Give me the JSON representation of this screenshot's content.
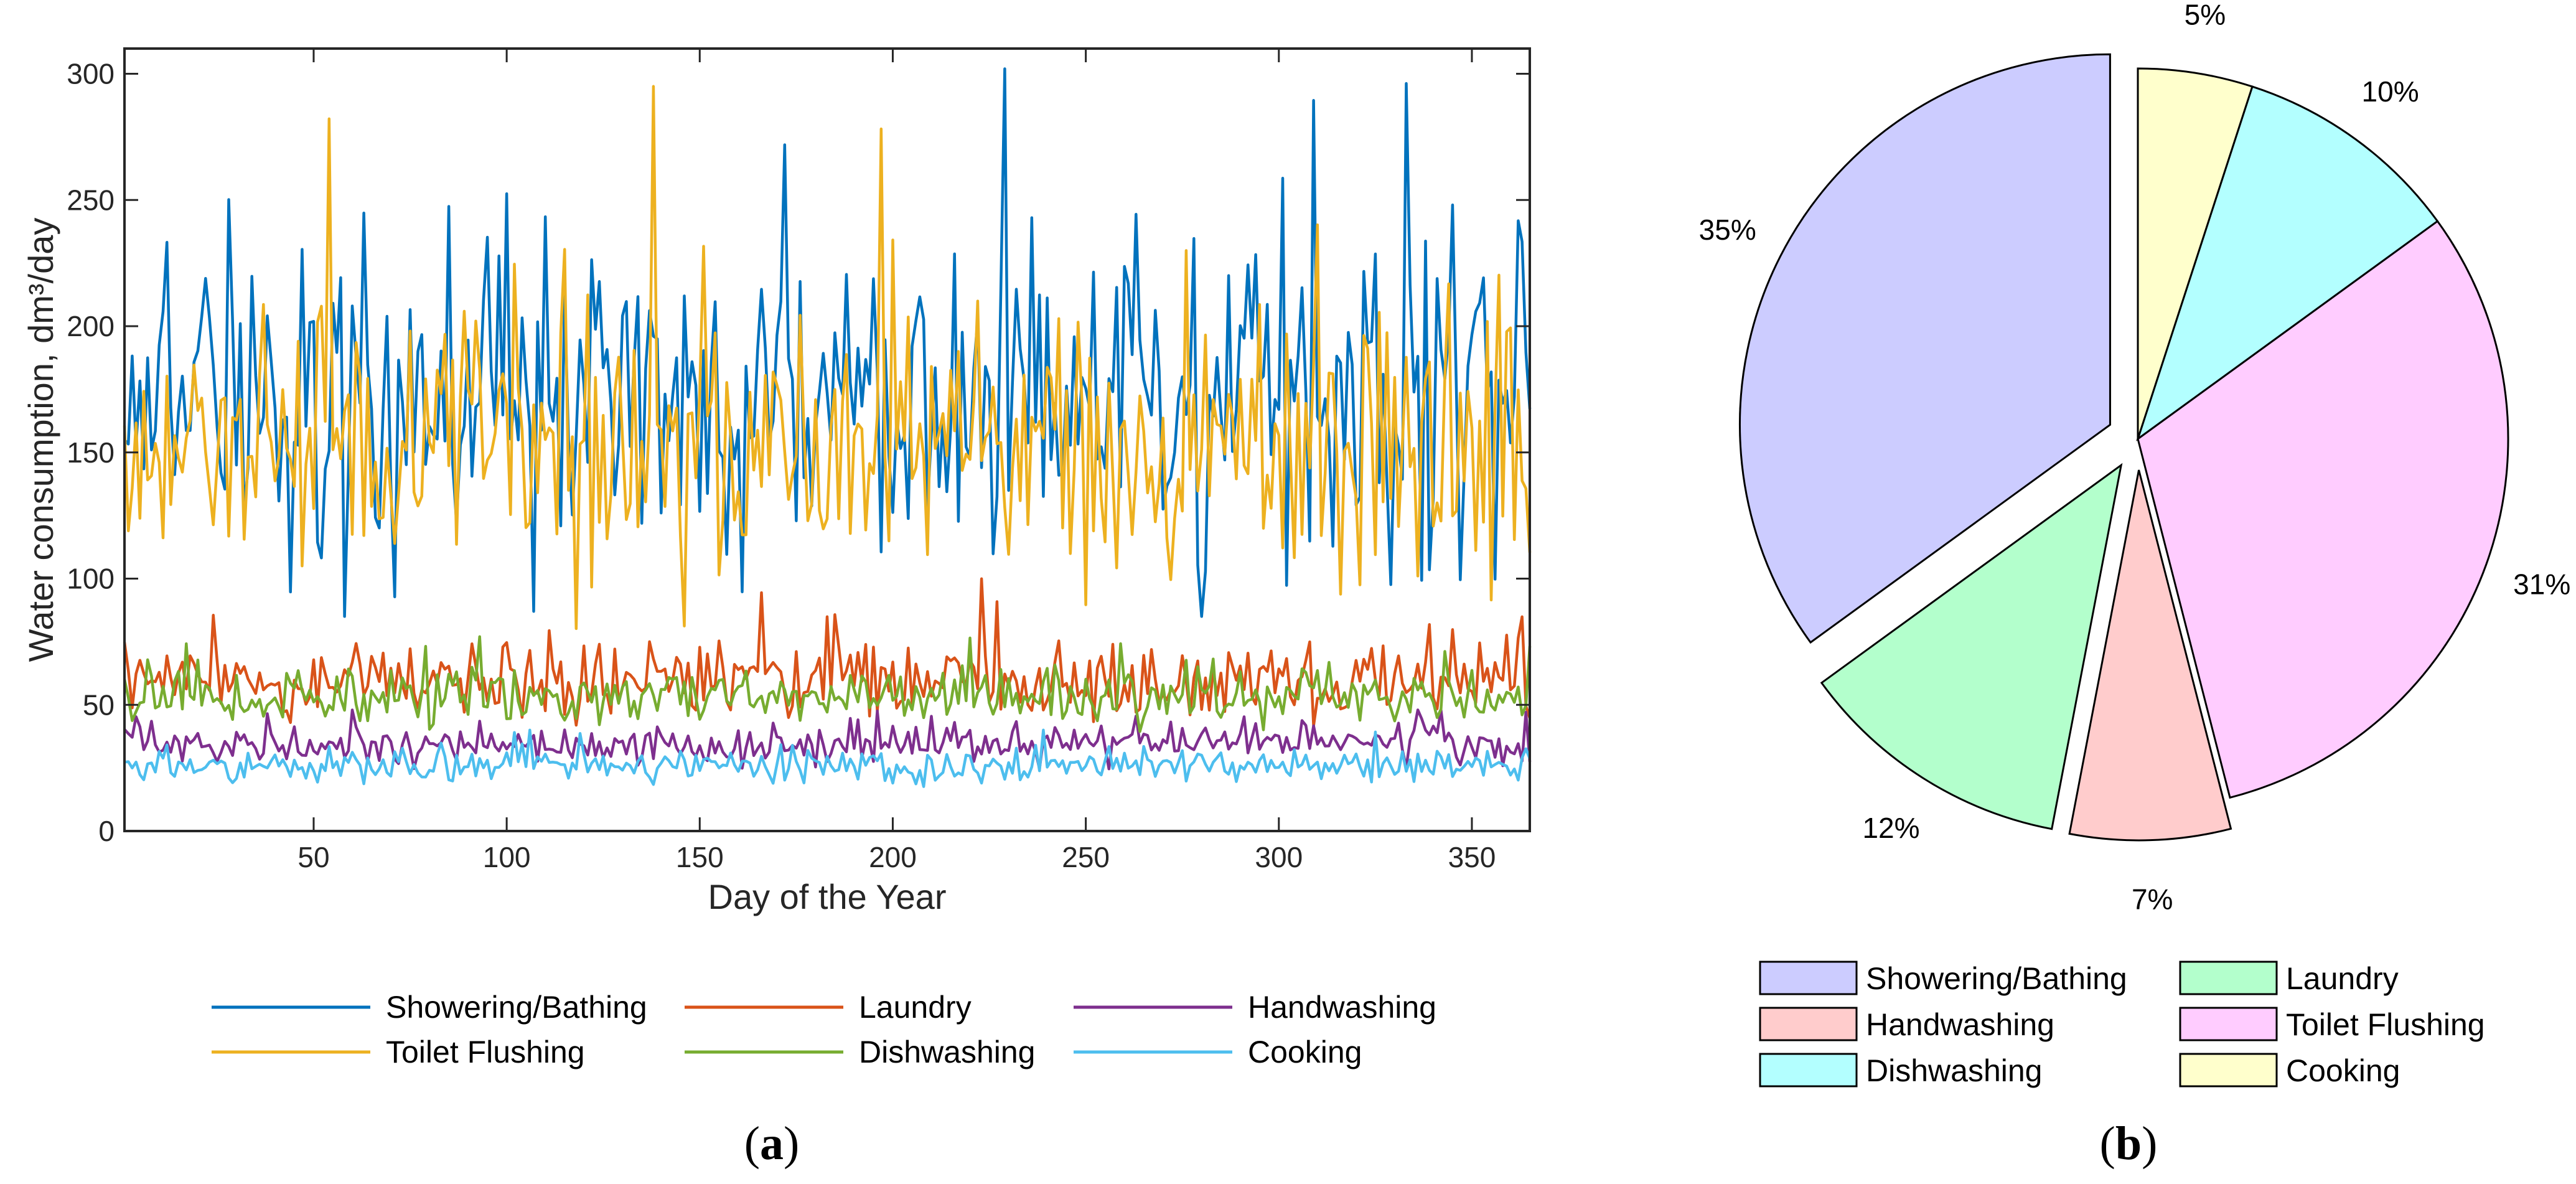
{
  "chart_data": [
    {
      "id": "a",
      "type": "line",
      "caption_letter": "a",
      "xlabel": "Day of the Year",
      "ylabel": "Water consumption, dm³/day",
      "xlim": [
        1,
        365
      ],
      "ylim": [
        0,
        310
      ],
      "xticks": [
        50,
        100,
        150,
        200,
        250,
        300,
        350
      ],
      "yticks": [
        0,
        50,
        100,
        150,
        200,
        250,
        300
      ],
      "legend": "bottom, 3 columns",
      "series": [
        {
          "name": "Showering/Bathing",
          "color": "#0072BD",
          "mean": 168,
          "amplitude": 48,
          "min": 85,
          "max": 308,
          "seed": 11
        },
        {
          "name": "Laundry",
          "color": "#D95319",
          "mean": 60,
          "amplitude": 11,
          "min": 38,
          "max": 100,
          "seed": 23
        },
        {
          "name": "Handwashing",
          "color": "#7E2F8E",
          "mean": 34,
          "amplitude": 5.5,
          "min": 22,
          "max": 48,
          "seed": 37
        },
        {
          "name": "Toilet Flushing",
          "color": "#EDB120",
          "mean": 150,
          "amplitude": 38,
          "min": 80,
          "max": 295,
          "seed": 41
        },
        {
          "name": "Dishwashing",
          "color": "#77AC30",
          "mean": 53,
          "amplitude": 8,
          "min": 38,
          "max": 92,
          "seed": 53
        },
        {
          "name": "Cooking",
          "color": "#4DBEEE",
          "mean": 26,
          "amplitude": 4.5,
          "min": 13,
          "max": 40,
          "seed": 67
        }
      ]
    },
    {
      "id": "b",
      "type": "pie",
      "caption_letter": "b",
      "legend": "bottom, 2 columns",
      "slices": [
        {
          "label": "Showering/Bathing",
          "percent": 35,
          "text": "35%",
          "color": "#CCCCFF",
          "exploded": true
        },
        {
          "label": "Laundry",
          "percent": 12,
          "text": "12%",
          "color": "#B3FFCC",
          "exploded": true
        },
        {
          "label": "Handwashing",
          "percent": 7,
          "text": "7%",
          "color": "#FFCCCC",
          "exploded": true
        },
        {
          "label": "Toilet Flushing",
          "percent": 31,
          "text": "31%",
          "color": "#FFCCFF",
          "exploded": false
        },
        {
          "label": "Dishwashing",
          "percent": 10,
          "text": "10%",
          "color": "#B3FFFF",
          "exploded": false
        },
        {
          "label": "Cooking",
          "percent": 5,
          "text": "5%",
          "color": "#FFFFCC",
          "exploded": false
        }
      ]
    }
  ]
}
